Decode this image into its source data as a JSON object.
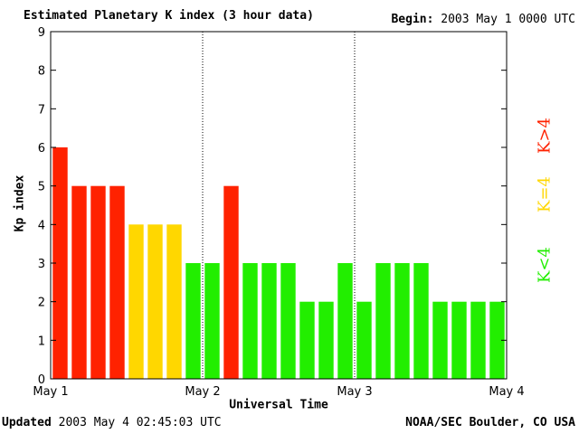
{
  "header": {
    "title": "Estimated Planetary K index (3 hour data)",
    "begin_label": "Begin:",
    "begin_value": "2003 May 1 0000 UTC"
  },
  "footer": {
    "updated_label": "Updated",
    "updated_value": "2003 May  4 02:45:03 UTC",
    "source": "NOAA/SEC Boulder, CO USA"
  },
  "legend": {
    "high": "K>4",
    "equal": "K=4",
    "low": "K<4"
  },
  "colors": {
    "high": "#ff2200",
    "equal": "#ffd700",
    "low": "#22ee00"
  },
  "chart_data": {
    "type": "bar",
    "xlabel": "Universal Time",
    "ylabel": "Kp index",
    "ylim": [
      0,
      9
    ],
    "yticks": [
      "0",
      "1",
      "2",
      "3",
      "4",
      "5",
      "6",
      "7",
      "8",
      "9"
    ],
    "xticks": [
      "May 1",
      "May 2",
      "May 3",
      "May 4"
    ],
    "values": [
      6,
      5,
      5,
      5,
      4,
      4,
      4,
      3,
      3,
      5,
      3,
      3,
      3,
      2,
      2,
      3,
      2,
      3,
      3,
      3,
      2,
      2,
      2,
      2
    ],
    "grid": "vertical dotted lines at day boundaries"
  }
}
